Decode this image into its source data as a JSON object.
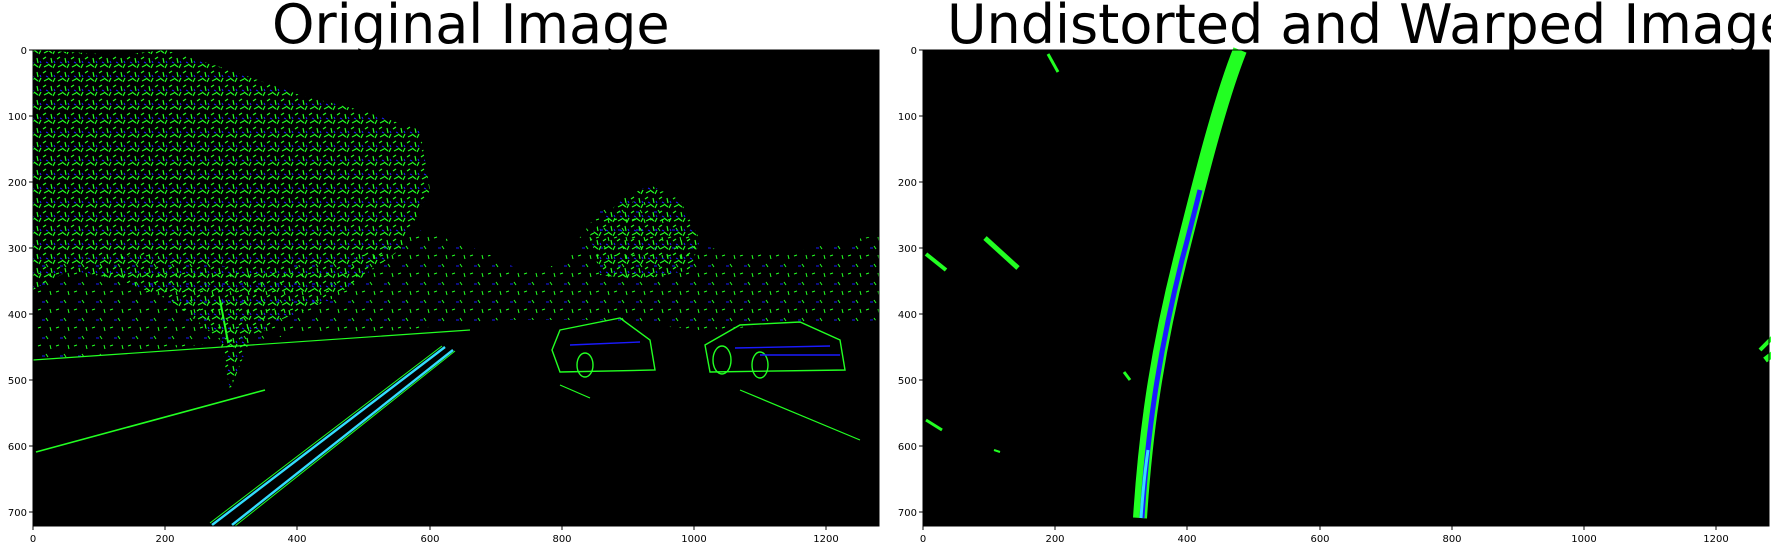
{
  "panels": [
    {
      "title": "Original Image",
      "x_ticks": [
        "0",
        "200",
        "400",
        "600",
        "800",
        "1000",
        "1200"
      ],
      "y_ticks": [
        "0",
        "100",
        "200",
        "300",
        "400",
        "500",
        "600",
        "700"
      ]
    },
    {
      "title": "Undistorted and Warped Image",
      "x_ticks": [
        "0",
        "200",
        "400",
        "600",
        "800",
        "1000",
        "1200"
      ],
      "y_ticks": [
        "0",
        "100",
        "200",
        "300",
        "400",
        "500",
        "600",
        "700"
      ]
    }
  ],
  "colors": {
    "background": "#000000",
    "edge_green": "#22ff22",
    "edge_blue": "#1a1aff",
    "lane_cyan": "#33ddff"
  }
}
